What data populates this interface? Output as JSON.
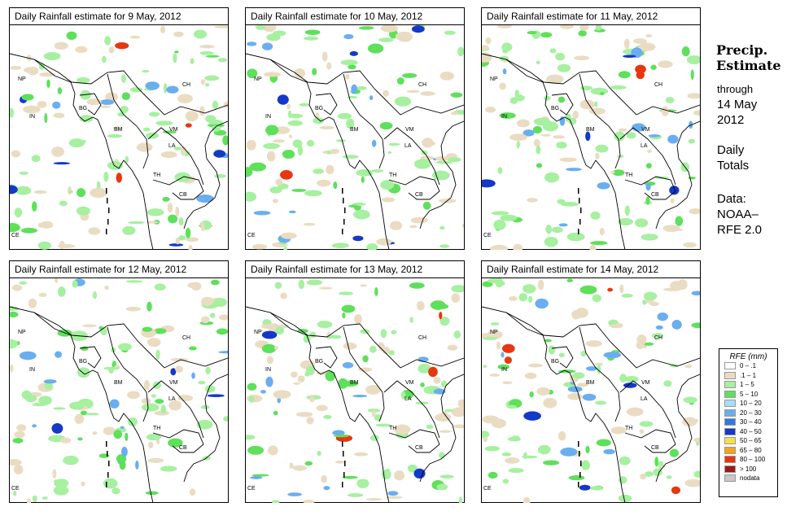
{
  "panels": [
    {
      "title": "Daily Rainfall estimate for  9 May, 2012"
    },
    {
      "title": "Daily Rainfall estimate for  10 May, 2012"
    },
    {
      "title": "Daily Rainfall estimate for  11 May, 2012"
    },
    {
      "title": "Daily Rainfall estimate for  12 May, 2012"
    },
    {
      "title": "Daily Rainfall estimate for  13 May, 2012"
    },
    {
      "title": "Daily Rainfall estimate for  14 May, 2012"
    }
  ],
  "map_labels": [
    "NP",
    "CH",
    "IN",
    "BG",
    "BM",
    "VM",
    "LA",
    "TH",
    "CB",
    "CE"
  ],
  "sidebar": {
    "title_line1": "Precip.",
    "title_line2": "Estimate",
    "through_label": "through",
    "date_line1": "14 May",
    "date_line2": "2012",
    "daily_line1": "Daily",
    "daily_line2": "Totals",
    "data_line1": "Data:",
    "data_line2": "NOAA–",
    "data_line3": "RFE 2.0"
  },
  "legend": {
    "title": "RFE (mm)",
    "items": [
      {
        "label": "0 – .1",
        "color": "#ffffff"
      },
      {
        "label": ".1 – 1",
        "color": "#eadcc2"
      },
      {
        "label": "1 – 5",
        "color": "#a6f0a0"
      },
      {
        "label": "5 – 10",
        "color": "#5ee05a"
      },
      {
        "label": "10 – 20",
        "color": "#a8dcf8"
      },
      {
        "label": "20 – 30",
        "color": "#6aaef0"
      },
      {
        "label": "30 – 40",
        "color": "#2f78e6"
      },
      {
        "label": "40 – 50",
        "color": "#1438c8"
      },
      {
        "label": "50 – 65",
        "color": "#f6e04a"
      },
      {
        "label": "65 – 80",
        "color": "#f6a21c"
      },
      {
        "label": "80 – 100",
        "color": "#e8360e"
      },
      {
        "label": "> 100",
        "color": "#a01818"
      },
      {
        "label": "nodata",
        "color": "#c8c8c8"
      }
    ]
  }
}
